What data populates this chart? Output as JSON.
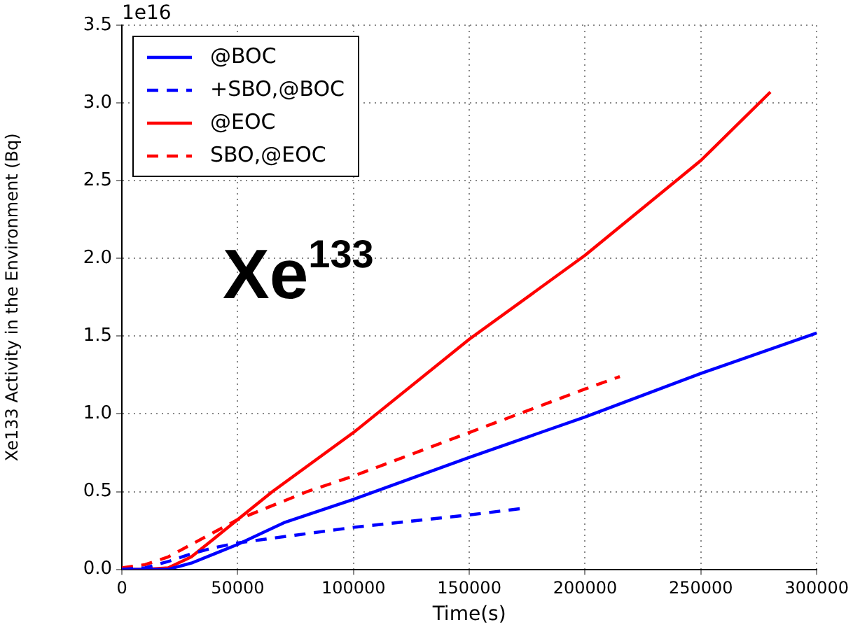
{
  "chart_data": {
    "type": "line",
    "xlabel": "Time(s)",
    "ylabel": "Xe133 Activity in the Environment (Bq)",
    "annotations": [
      "1e16",
      "Xe$^{133}$"
    ],
    "xlim": [
      0,
      300000
    ],
    "xticks": [
      0,
      50000,
      100000,
      150000,
      200000,
      250000,
      300000
    ],
    "ylim": [
      0,
      3.5
    ],
    "yticks": [
      {
        "value": 0,
        "label": "0.0"
      },
      0.5,
      {
        "value": 1,
        "label": "1.0"
      },
      1.5,
      {
        "value": 2,
        "label": "2.0"
      },
      2.5,
      {
        "value": 3,
        "label": "3.0"
      },
      3.5
    ],
    "grid": true,
    "legend": "top left",
    "marker": "none",
    "series": [
      {
        "name": "@BOC",
        "color": "#0000ff",
        "line_style": "solid",
        "x": [
          0,
          20000,
          30000,
          40000,
          50000,
          70000,
          100000,
          150000,
          200000,
          250000,
          300000
        ],
        "values": [
          0,
          0,
          0.04,
          0.1,
          0.16,
          0.3,
          0.45,
          0.72,
          0.98,
          1.26,
          1.52
        ]
      },
      {
        "name": "+SBO,@BOC",
        "color": "#0000ff",
        "line_style": "dashed",
        "x": [
          0,
          10000,
          20000,
          30000,
          40000,
          50000,
          100000,
          150000,
          172000
        ],
        "values": [
          0,
          0.01,
          0.05,
          0.1,
          0.14,
          0.17,
          0.27,
          0.35,
          0.39
        ]
      },
      {
        "name": "@EOC",
        "color": "#ff0000",
        "line_style": "solid",
        "x": [
          0,
          10000,
          20000,
          30000,
          40000,
          50000,
          65000,
          100000,
          150000,
          200000,
          250000,
          280000
        ],
        "values": [
          0,
          0,
          0.01,
          0.08,
          0.2,
          0.32,
          0.5,
          0.88,
          1.48,
          2.02,
          2.63,
          3.07
        ]
      },
      {
        "name": "SBO,@EOC",
        "color": "#ff0000",
        "line_style": "dashed",
        "x": [
          0,
          10000,
          20000,
          30000,
          40000,
          50000,
          80000,
          100000,
          150000,
          200000,
          215000
        ],
        "values": [
          0.01,
          0.03,
          0.08,
          0.16,
          0.24,
          0.32,
          0.5,
          0.6,
          0.88,
          1.16,
          1.24
        ]
      }
    ]
  }
}
